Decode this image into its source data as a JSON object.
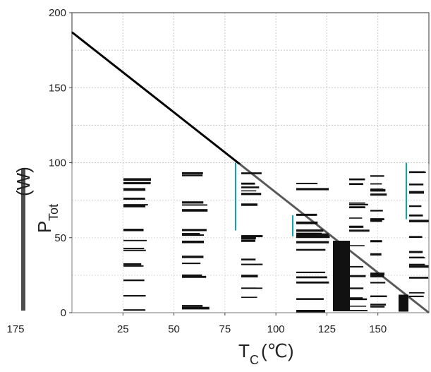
{
  "chart_data": {
    "type": "line",
    "title": "",
    "xlabel": "T",
    "xlabel_sub": "C",
    "xlabel_unit": "(℃)",
    "ylabel": "P",
    "ylabel_sub": "Tot",
    "ylabel_unit": "(W)",
    "xlim": [
      0,
      175
    ],
    "ylim": [
      0,
      200
    ],
    "x_ticks": [
      25,
      50,
      75,
      100,
      125,
      150
    ],
    "x_tick_labels": [
      "25",
      "50",
      "75",
      "100",
      "125",
      "150"
    ],
    "x_left_label": "175",
    "y_ticks": [
      0,
      50,
      100,
      150,
      200
    ],
    "y_tick_labels": [
      "0",
      "50",
      "100",
      "150",
      "200"
    ],
    "grid": true,
    "series": [
      {
        "x": [
          0,
          175
        ],
        "y": [
          187,
          0
        ]
      }
    ],
    "colors": {
      "line": "#000000",
      "grid": "#c8c8c8",
      "axis": "#555555"
    }
  }
}
